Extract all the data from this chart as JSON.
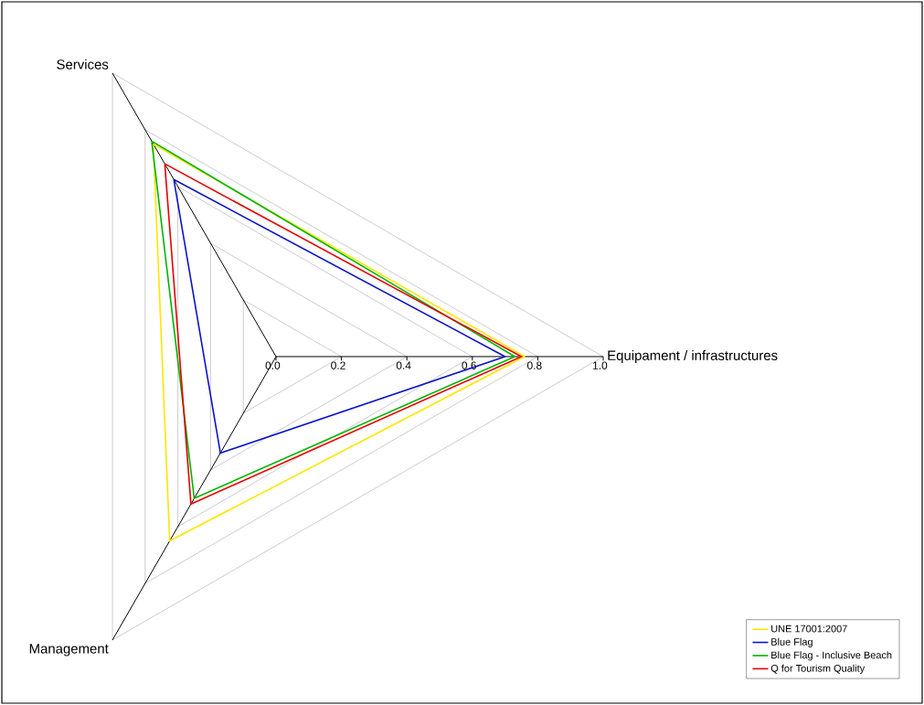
{
  "chart_data": {
    "type": "radar",
    "categories": [
      "Services",
      "Equipament / infrastructures",
      "Management"
    ],
    "series": [
      {
        "name": "UNE 17001:2007",
        "color": "#ffe600",
        "values": [
          0.75,
          0.76,
          0.65
        ]
      },
      {
        "name": "Blue Flag",
        "color": "#0a14c8",
        "values": [
          0.625,
          0.7,
          0.34
        ]
      },
      {
        "name": "Blue Flag - Inclusive Beach",
        "color": "#00b400",
        "values": [
          0.76,
          0.73,
          0.5
        ]
      },
      {
        "name": "Q for Tourism Quality",
        "color": "#e60000",
        "values": [
          0.68,
          0.75,
          0.52
        ]
      }
    ],
    "ylim": [
      0,
      1.0
    ],
    "yticks": [
      {
        "value": 0,
        "label": "0.0"
      },
      {
        "value": 0.2,
        "label": "0.2"
      },
      {
        "value": 0.4,
        "label": "0.4"
      },
      {
        "value": 0.6,
        "label": "0.6"
      },
      {
        "value": 0.8,
        "label": "0.8"
      },
      {
        "value": 1.0,
        "label": "1.0"
      }
    ],
    "grid": true,
    "legend": "bottom right",
    "marker": "none",
    "line_style": "solid"
  }
}
